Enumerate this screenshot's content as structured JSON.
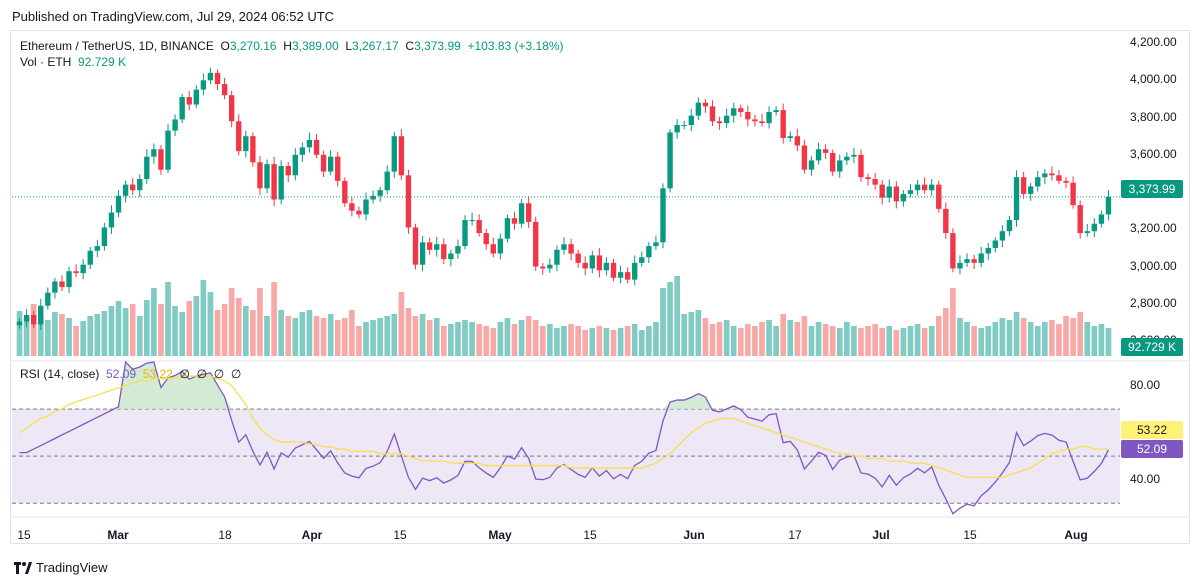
{
  "header": {
    "published": "Published on TradingView.com, Jul 29, 2024 06:52 UTC"
  },
  "legend": {
    "symbol": "Ethereum / TetherUS, 1D, BINANCE",
    "open_label": "O",
    "open": "3,270.16",
    "high_label": "H",
    "high": "3,389.00",
    "low_label": "L",
    "low": "3,267.17",
    "close_label": "C",
    "close": "3,373.99",
    "change": "+103.83 (+3.18%)"
  },
  "volume_legend": {
    "label": "Vol · ETH",
    "value": "92.729 K"
  },
  "rsi_legend": {
    "label": "RSI (14, close)",
    "rsi": "52.09",
    "ma": "53.22",
    "nans": [
      "∅",
      "∅",
      "∅",
      "∅"
    ]
  },
  "tags": {
    "price": "3,373.99",
    "volume": "92.729 K",
    "ma": "53.22",
    "rsi": "52.09"
  },
  "footer": {
    "brand": "TradingView"
  },
  "colors": {
    "up": "#089981",
    "down": "#f23645",
    "vol_up": "#80cbc4",
    "vol_down": "#f7a9a7",
    "rsi": "#7e57c2",
    "rsi_ma": "#f5e04e",
    "band": "#ede7f6"
  },
  "chart_data": {
    "type": "candlestick",
    "price_axis": {
      "ticks": [
        "4,200.00",
        "4,000.00",
        "3,800.00",
        "3,600.00",
        "3,400.00",
        "3,200.00",
        "3,000.00",
        "2,800.00",
        "2,600.00"
      ],
      "range": [
        2520,
        4270
      ]
    },
    "rsi_axis": {
      "ticks": [
        "80.00",
        "40.00"
      ],
      "bands": [
        70,
        30
      ],
      "mid": 50,
      "range": [
        25,
        90
      ]
    },
    "x_axis": {
      "ticks": [
        "15",
        "Mar",
        "18",
        "Apr",
        "15",
        "May",
        "15",
        "Jun",
        "17",
        "Jul",
        "15",
        "Aug"
      ]
    },
    "closes": [
      2705,
      2740,
      2690,
      2790,
      2860,
      2920,
      2890,
      2975,
      2965,
      3010,
      3085,
      3110,
      3210,
      3290,
      3380,
      3440,
      3410,
      3470,
      3590,
      3630,
      3520,
      3730,
      3790,
      3910,
      3870,
      3950,
      4000,
      4040,
      3980,
      3920,
      3780,
      3620,
      3700,
      3560,
      3420,
      3550,
      3360,
      3540,
      3490,
      3600,
      3640,
      3680,
      3600,
      3510,
      3590,
      3460,
      3340,
      3300,
      3280,
      3360,
      3380,
      3410,
      3510,
      3700,
      3490,
      3210,
      3010,
      3130,
      3090,
      3120,
      3040,
      3070,
      3110,
      3250,
      3250,
      3180,
      3120,
      3070,
      3150,
      3260,
      3230,
      3340,
      3240,
      3000,
      2990,
      3010,
      3090,
      3120,
      3070,
      3020,
      2990,
      3060,
      2980,
      3020,
      2940,
      2970,
      2930,
      3020,
      3050,
      3110,
      3130,
      3420,
      3720,
      3760,
      3760,
      3810,
      3880,
      3860,
      3780,
      3770,
      3810,
      3850,
      3830,
      3790,
      3780,
      3770,
      3830,
      3840,
      3690,
      3700,
      3650,
      3520,
      3570,
      3630,
      3610,
      3510,
      3570,
      3590,
      3600,
      3480,
      3470,
      3440,
      3370,
      3430,
      3350,
      3390,
      3410,
      3440,
      3410,
      3440,
      3310,
      3180,
      2990,
      3020,
      3040,
      3020,
      3070,
      3100,
      3140,
      3190,
      3250,
      3480,
      3390,
      3430,
      3480,
      3500,
      3490,
      3460,
      3450,
      3330,
      3180,
      3190,
      3230,
      3280,
      3374
    ],
    "volumes": [
      45,
      38,
      52,
      40,
      36,
      44,
      42,
      38,
      30,
      35,
      40,
      42,
      45,
      50,
      55,
      48,
      52,
      40,
      56,
      68,
      52,
      74,
      50,
      44,
      55,
      60,
      76,
      64,
      46,
      52,
      68,
      58,
      50,
      46,
      68,
      40,
      74,
      46,
      40,
      38,
      44,
      46,
      40,
      38,
      42,
      36,
      38,
      46,
      30,
      34,
      36,
      38,
      40,
      42,
      64,
      48,
      40,
      42,
      36,
      38,
      30,
      32,
      34,
      36,
      34,
      32,
      30,
      28,
      34,
      38,
      32,
      36,
      40,
      36,
      30,
      32,
      28,
      30,
      32,
      30,
      26,
      28,
      30,
      28,
      26,
      28,
      30,
      32,
      26,
      30,
      34,
      68,
      74,
      80,
      42,
      44,
      46,
      38,
      32,
      34,
      36,
      30,
      28,
      32,
      30,
      34,
      36,
      30,
      42,
      36,
      34,
      40,
      30,
      34,
      32,
      30,
      28,
      34,
      30,
      28,
      30,
      32,
      28,
      30,
      26,
      28,
      30,
      32,
      28,
      30,
      40,
      48,
      68,
      38,
      34,
      30,
      28,
      30,
      34,
      38,
      36,
      44,
      38,
      34,
      30,
      34,
      36,
      32,
      40,
      38,
      44,
      34,
      30,
      32,
      28
    ],
    "rsi_ma": [
      60,
      62,
      64,
      66,
      67,
      69,
      70,
      72,
      73,
      74,
      75,
      76,
      77,
      78,
      79,
      80,
      81,
      82,
      82,
      83,
      83,
      83,
      83,
      84,
      84,
      84,
      84,
      84,
      83,
      82,
      80,
      76,
      72,
      66,
      62,
      59,
      57,
      56,
      56,
      56,
      56,
      55,
      55,
      54,
      54,
      53,
      53,
      52,
      52,
      52,
      52,
      51,
      51,
      51,
      51,
      50,
      49,
      48,
      48,
      48,
      48,
      47,
      47,
      47,
      47,
      47,
      46,
      46,
      46,
      46,
      46,
      46,
      46,
      46,
      46,
      46,
      46,
      46,
      45,
      45,
      45,
      45,
      45,
      45,
      45,
      45,
      45,
      45,
      45,
      46,
      47,
      49,
      51,
      54,
      57,
      60,
      62,
      64,
      65,
      66,
      66,
      66,
      65,
      64,
      63,
      62,
      61,
      60,
      59,
      58,
      57,
      56,
      55,
      54,
      53,
      52,
      51,
      51,
      50,
      50,
      49,
      49,
      49,
      48,
      48,
      48,
      47,
      47,
      47,
      46,
      45,
      44,
      43,
      42,
      41,
      41,
      41,
      41,
      41,
      41,
      42,
      43,
      44,
      45,
      47,
      49,
      51,
      52,
      53,
      53,
      54,
      54,
      53,
      53,
      53
    ]
  }
}
